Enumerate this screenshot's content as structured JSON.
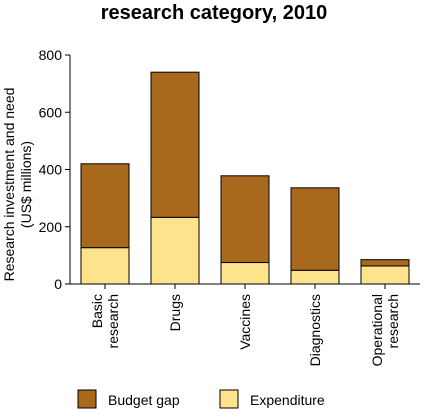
{
  "chart_data": {
    "type": "bar",
    "stacked": true,
    "title": "research category, 2010",
    "ylabel": [
      "Research investment and need",
      "(US$ millions)"
    ],
    "xlabel": "",
    "ylim": [
      0,
      800
    ],
    "yticks": [
      0,
      200,
      400,
      600,
      800
    ],
    "grid": false,
    "legend_position": "bottom",
    "categories": [
      [
        "Basic",
        "research"
      ],
      [
        "Drugs"
      ],
      [
        "Vaccines"
      ],
      [
        "Diagnostics"
      ],
      [
        "Operational",
        "research"
      ]
    ],
    "series": [
      {
        "name": "Expenditure",
        "color": "#fde38c",
        "values": [
          127,
          233,
          75,
          48,
          63
        ]
      },
      {
        "name": "Budget gap",
        "color": "#a9691d",
        "values": [
          293,
          507,
          303,
          288,
          22
        ]
      }
    ],
    "legend_order": [
      1,
      0
    ]
  }
}
